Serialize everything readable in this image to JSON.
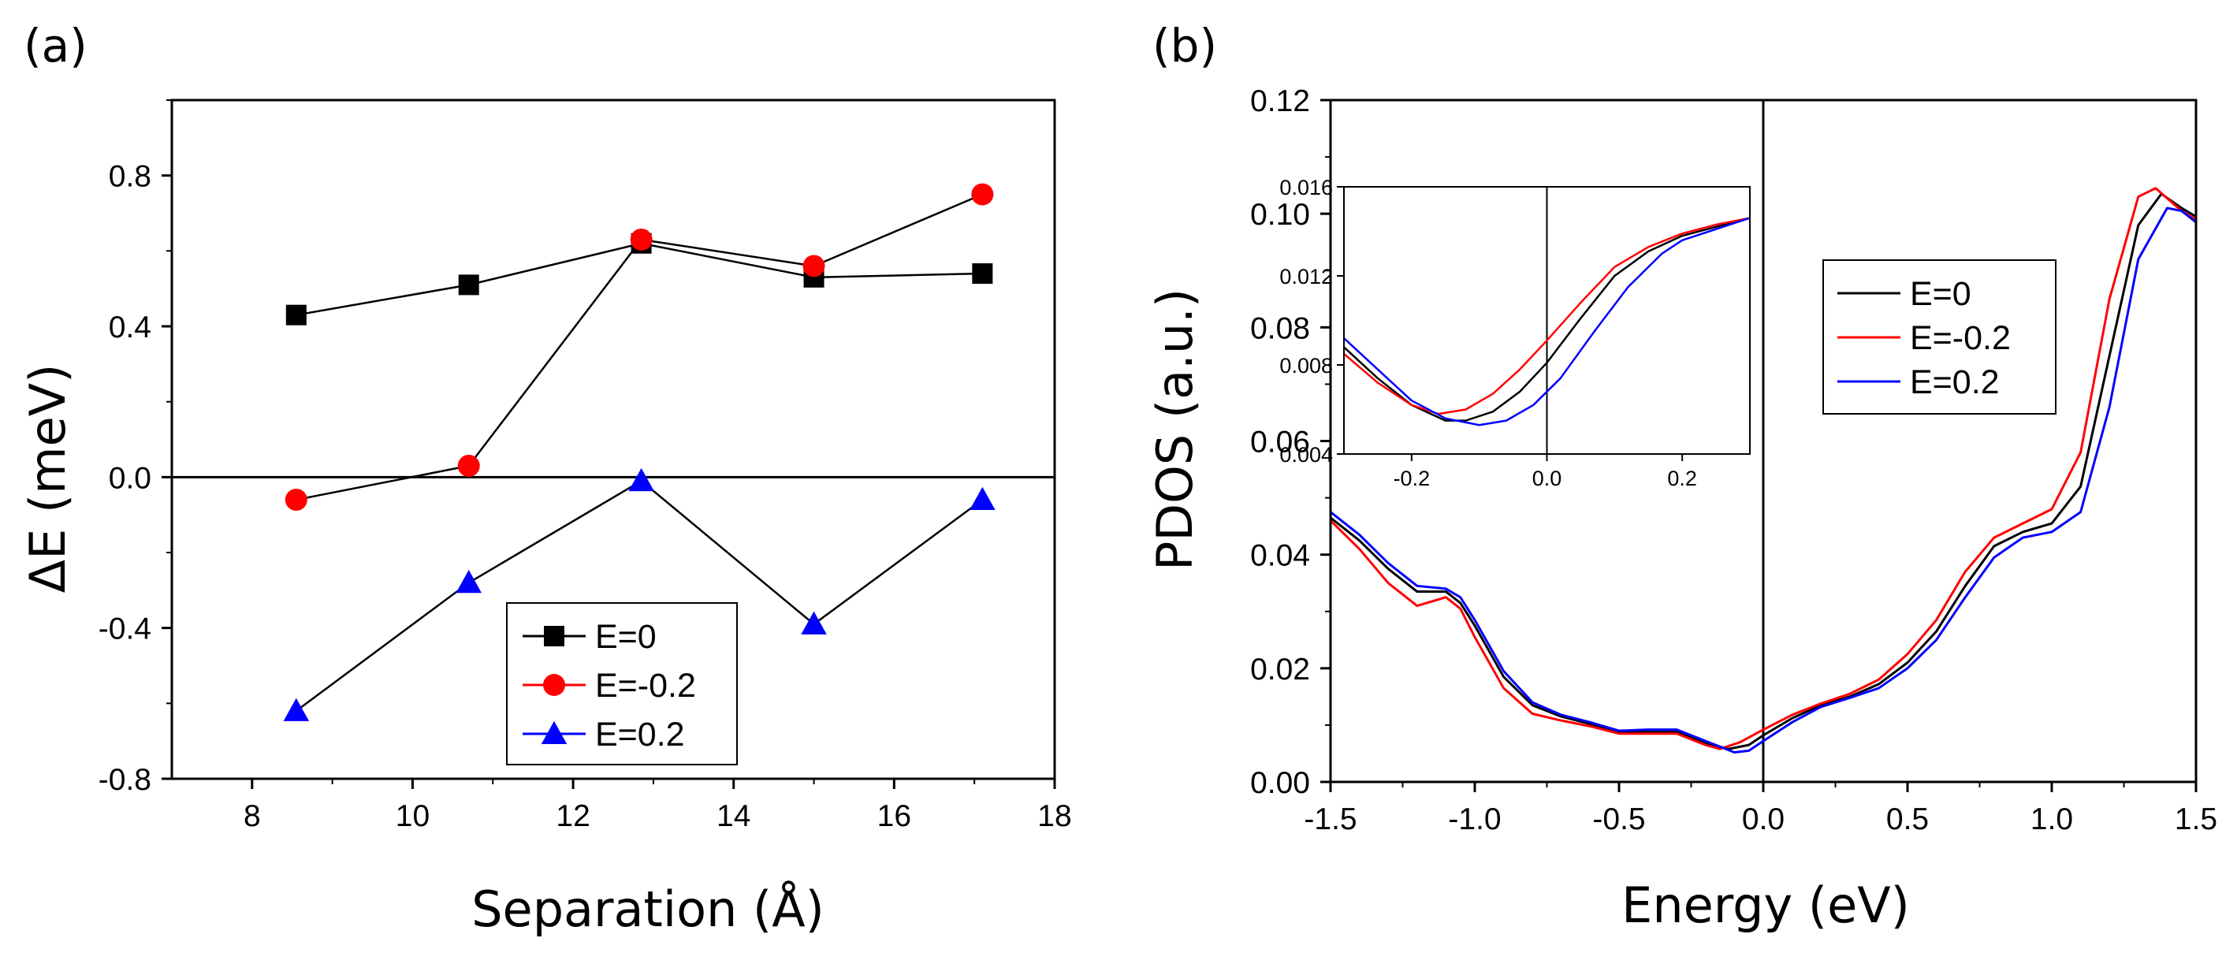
{
  "chart_data": [
    {
      "type": "line",
      "panel_label": "(a)",
      "xlabel": "Separation (Å)",
      "ylabel": "ΔE (meV)",
      "xlim": [
        7,
        18
      ],
      "ylim": [
        -0.8,
        1.0
      ],
      "x_ticks": [
        8,
        10,
        12,
        14,
        16,
        18
      ],
      "y_ticks": [
        -0.8,
        -0.4,
        0.0,
        0.4,
        0.8
      ],
      "x_tick_labels": [
        "8",
        "10",
        "12",
        "14",
        "16",
        "18"
      ],
      "y_tick_labels": [
        "-0.8",
        "-0.4",
        "0.0",
        "0.4",
        "0.8"
      ],
      "reference_line_y": 0,
      "legend_position": "bottom-center",
      "series": [
        {
          "name": "E=0",
          "color": "#000000",
          "marker": "square",
          "x": [
            8.55,
            10.7,
            12.85,
            15.0,
            17.1
          ],
          "y": [
            0.43,
            0.51,
            0.62,
            0.53,
            0.54
          ]
        },
        {
          "name": "E=-0.2",
          "color": "#ff0000",
          "marker": "circle",
          "x": [
            8.55,
            10.7,
            12.85,
            15.0,
            17.1
          ],
          "y": [
            -0.06,
            0.03,
            0.63,
            0.56,
            0.75
          ]
        },
        {
          "name": "E=0.2",
          "color": "#0000ff",
          "marker": "triangle",
          "x": [
            8.55,
            10.7,
            12.85,
            15.0,
            17.1
          ],
          "y": [
            -0.62,
            -0.28,
            -0.01,
            -0.39,
            -0.06
          ]
        }
      ]
    },
    {
      "type": "line",
      "panel_label": "(b)",
      "xlabel": "Energy (eV)",
      "ylabel": "PDOS (a.u.)",
      "xlim": [
        -1.5,
        1.5
      ],
      "ylim": [
        0,
        0.12
      ],
      "x_ticks": [
        -1.5,
        -1.0,
        -0.5,
        0.0,
        0.5,
        1.0,
        1.5
      ],
      "y_ticks": [
        0.0,
        0.02,
        0.04,
        0.06,
        0.08,
        0.1,
        0.12
      ],
      "x_tick_labels": [
        "-1.5",
        "-1.0",
        "-0.5",
        "0.0",
        "0.5",
        "1.0",
        "1.5"
      ],
      "y_tick_labels": [
        "0.00",
        "0.02",
        "0.04",
        "0.06",
        "0.08",
        "0.10",
        "0.12"
      ],
      "reference_line_x": 0,
      "legend_position": "center-right",
      "series": [
        {
          "name": "E=0",
          "color": "#000000",
          "x": [
            -1.5,
            -1.4,
            -1.3,
            -1.2,
            -1.1,
            -1.05,
            -1.0,
            -0.9,
            -0.8,
            -0.7,
            -0.6,
            -0.5,
            -0.4,
            -0.3,
            -0.2,
            -0.12,
            -0.05,
            0.0,
            0.1,
            0.2,
            0.3,
            0.4,
            0.5,
            0.6,
            0.7,
            0.8,
            0.9,
            1.0,
            1.1,
            1.2,
            1.3,
            1.38,
            1.45,
            1.5
          ],
          "y": [
            0.0465,
            0.0425,
            0.0375,
            0.0335,
            0.0335,
            0.0315,
            0.0275,
            0.0185,
            0.0135,
            0.0115,
            0.0102,
            0.0088,
            0.0088,
            0.0088,
            0.0068,
            0.0058,
            0.0065,
            0.0082,
            0.0112,
            0.0135,
            0.015,
            0.0172,
            0.021,
            0.0265,
            0.0345,
            0.0415,
            0.044,
            0.0455,
            0.052,
            0.075,
            0.098,
            0.1035,
            0.101,
            0.0995
          ]
        },
        {
          "name": "E=-0.2",
          "color": "#ff0000",
          "x": [
            -1.5,
            -1.4,
            -1.3,
            -1.2,
            -1.1,
            -1.05,
            -1.0,
            -0.9,
            -0.8,
            -0.7,
            -0.6,
            -0.5,
            -0.4,
            -0.3,
            -0.2,
            -0.15,
            -0.08,
            0.0,
            0.1,
            0.2,
            0.3,
            0.4,
            0.5,
            0.6,
            0.7,
            0.8,
            0.9,
            1.0,
            1.1,
            1.2,
            1.3,
            1.36,
            1.45,
            1.5
          ],
          "y": [
            0.046,
            0.041,
            0.035,
            0.031,
            0.0325,
            0.0305,
            0.0255,
            0.0165,
            0.012,
            0.0108,
            0.0098,
            0.0085,
            0.0085,
            0.0085,
            0.0065,
            0.0058,
            0.007,
            0.0092,
            0.0118,
            0.0138,
            0.0155,
            0.018,
            0.0225,
            0.0285,
            0.037,
            0.043,
            0.0455,
            0.048,
            0.058,
            0.085,
            0.103,
            0.1045,
            0.1005,
            0.099
          ]
        },
        {
          "name": "E=0.2",
          "color": "#0000ff",
          "x": [
            -1.5,
            -1.4,
            -1.3,
            -1.2,
            -1.1,
            -1.05,
            -1.0,
            -0.9,
            -0.8,
            -0.7,
            -0.6,
            -0.5,
            -0.4,
            -0.3,
            -0.2,
            -0.1,
            -0.05,
            0.0,
            0.1,
            0.2,
            0.3,
            0.4,
            0.5,
            0.6,
            0.7,
            0.8,
            0.9,
            1.0,
            1.1,
            1.2,
            1.3,
            1.4,
            1.45,
            1.5
          ],
          "y": [
            0.0475,
            0.0435,
            0.0385,
            0.0345,
            0.034,
            0.0325,
            0.0285,
            0.0195,
            0.014,
            0.0118,
            0.0105,
            0.009,
            0.0092,
            0.0092,
            0.0072,
            0.0052,
            0.0055,
            0.0072,
            0.0105,
            0.0132,
            0.0148,
            0.0165,
            0.02,
            0.025,
            0.0325,
            0.0395,
            0.043,
            0.044,
            0.0475,
            0.066,
            0.092,
            0.101,
            0.1005,
            0.0985
          ]
        }
      ],
      "inset": {
        "xlim": [
          -0.3,
          0.3
        ],
        "ylim": [
          0.004,
          0.016
        ],
        "x_ticks": [
          -0.2,
          0.0,
          0.2
        ],
        "y_ticks": [
          0.004,
          0.008,
          0.012,
          0.016
        ],
        "x_tick_labels": [
          "-0.2",
          "0.0",
          "0.2"
        ],
        "y_tick_labels": [
          "0.004",
          "0.008",
          "0.012",
          "0.016"
        ],
        "reference_line_x": 0,
        "series": [
          {
            "name": "E=0",
            "color": "#000000",
            "x": [
              -0.3,
              -0.25,
              -0.2,
              -0.15,
              -0.12,
              -0.08,
              -0.04,
              0.0,
              0.05,
              0.1,
              0.15,
              0.2,
              0.25,
              0.3
            ],
            "y": [
              0.0088,
              0.0074,
              0.0062,
              0.0055,
              0.0055,
              0.0059,
              0.0068,
              0.0081,
              0.0101,
              0.012,
              0.0131,
              0.0138,
              0.0142,
              0.0146
            ]
          },
          {
            "name": "E=-0.2",
            "color": "#ff0000",
            "x": [
              -0.3,
              -0.25,
              -0.2,
              -0.16,
              -0.12,
              -0.08,
              -0.04,
              0.0,
              0.05,
              0.1,
              0.15,
              0.2,
              0.25,
              0.3
            ],
            "y": [
              0.0085,
              0.0072,
              0.0062,
              0.0058,
              0.006,
              0.0067,
              0.0078,
              0.0091,
              0.0108,
              0.0124,
              0.0133,
              0.0139,
              0.0143,
              0.0146
            ]
          },
          {
            "name": "E=0.2",
            "color": "#0000ff",
            "x": [
              -0.3,
              -0.25,
              -0.2,
              -0.15,
              -0.1,
              -0.06,
              -0.02,
              0.02,
              0.07,
              0.12,
              0.17,
              0.2,
              0.25,
              0.3
            ],
            "y": [
              0.0092,
              0.0078,
              0.0064,
              0.0056,
              0.0053,
              0.0055,
              0.0062,
              0.0074,
              0.0095,
              0.0115,
              0.013,
              0.0136,
              0.0141,
              0.0146
            ]
          }
        ]
      }
    }
  ]
}
